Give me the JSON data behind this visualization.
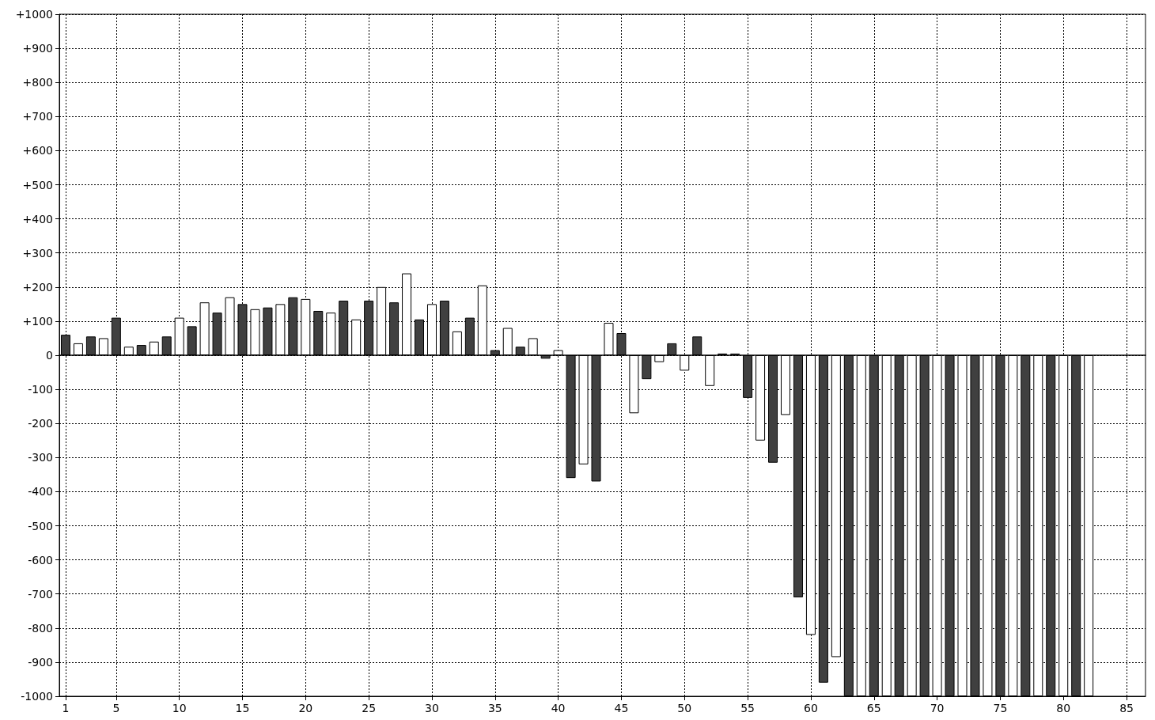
{
  "chart_data": {
    "type": "bar",
    "grid": true,
    "xlim": [
      0.5,
      86.5
    ],
    "xticks": [
      1,
      5,
      10,
      15,
      20,
      25,
      30,
      35,
      40,
      45,
      50,
      55,
      60,
      65,
      70,
      75,
      80,
      85
    ],
    "ylim": [
      -1000,
      1000
    ],
    "yticks": [
      {
        "value": 1000,
        "label": "+1000"
      },
      {
        "value": 900,
        "label": "+900"
      },
      {
        "value": 800,
        "label": "+800"
      },
      {
        "value": 700,
        "label": "+700"
      },
      {
        "value": 600,
        "label": "+600"
      },
      {
        "value": 500,
        "label": "+500"
      },
      {
        "value": 400,
        "label": "+400"
      },
      {
        "value": 300,
        "label": "+300"
      },
      {
        "value": 200,
        "label": "+200"
      },
      {
        "value": 100,
        "label": "+100"
      },
      0,
      -100,
      -200,
      -300,
      -400,
      -500,
      -600,
      -700,
      -800,
      -900,
      -1000
    ],
    "series": [
      {
        "color": "#404040",
        "x": [
          1,
          3,
          5,
          7,
          9,
          11,
          13,
          15,
          17,
          19,
          21,
          23,
          25,
          27,
          29,
          31,
          33,
          35,
          37,
          39,
          41,
          43,
          45,
          47,
          49,
          51,
          53,
          55,
          57,
          59,
          61,
          63,
          65,
          67,
          69,
          71,
          73,
          75,
          77,
          79,
          81
        ],
        "values": [
          60,
          55,
          110,
          30,
          55,
          85,
          125,
          150,
          140,
          170,
          130,
          160,
          160,
          155,
          105,
          160,
          110,
          15,
          25,
          -10,
          -360,
          -370,
          65,
          -70,
          35,
          55,
          5,
          -125,
          -315,
          -710,
          -960,
          -1000,
          -1000,
          -1000,
          -1000,
          -1000,
          -1000,
          -1000,
          -1000,
          -1000,
          -1000
        ]
      },
      {
        "color": "#ffffff",
        "x": [
          2,
          4,
          6,
          8,
          10,
          12,
          14,
          16,
          18,
          20,
          22,
          24,
          26,
          28,
          30,
          32,
          34,
          36,
          38,
          40,
          42,
          44,
          46,
          48,
          50,
          52,
          54,
          56,
          58,
          60,
          62,
          64,
          66,
          68,
          70,
          72,
          74,
          76,
          78,
          80,
          82
        ],
        "values": [
          35,
          50,
          25,
          40,
          110,
          155,
          170,
          135,
          150,
          165,
          125,
          105,
          200,
          240,
          150,
          70,
          205,
          80,
          50,
          15,
          -320,
          95,
          -170,
          -20,
          -45,
          -90,
          5,
          -250,
          -175,
          -820,
          -885,
          -1000,
          -1000,
          -1000,
          -1000,
          -1000,
          -1000,
          -1000,
          -1000,
          -1000,
          -1000
        ]
      }
    ]
  }
}
